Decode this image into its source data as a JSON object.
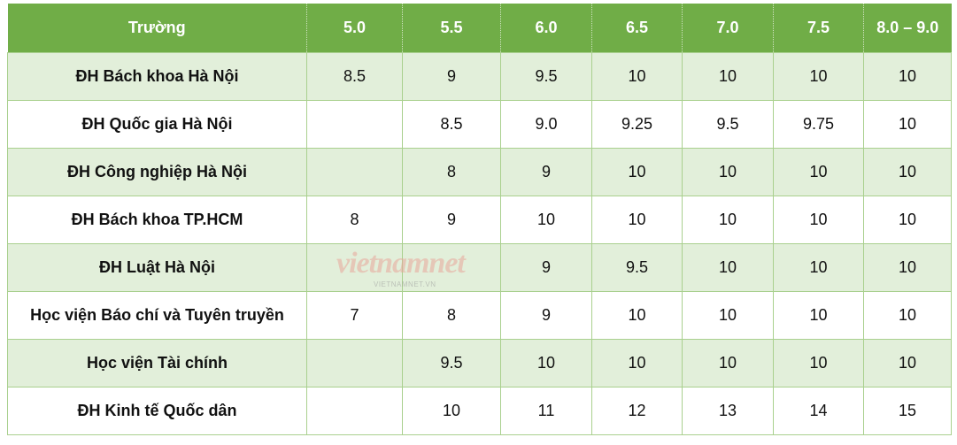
{
  "table": {
    "headers": [
      "Trường",
      "5.0",
      "5.5",
      "6.0",
      "6.5",
      "7.0",
      "7.5",
      "8.0 – 9.0"
    ],
    "rows": [
      [
        "ĐH Bách khoa Hà Nội",
        "8.5",
        "9",
        "9.5",
        "10",
        "10",
        "10",
        "10"
      ],
      [
        "ĐH Quốc gia Hà Nội",
        "",
        "8.5",
        "9.0",
        "9.25",
        "9.5",
        "9.75",
        "10"
      ],
      [
        "ĐH Công nghiệp Hà Nội",
        "",
        "8",
        "9",
        "10",
        "10",
        "10",
        "10"
      ],
      [
        "ĐH Bách khoa TP.HCM",
        "8",
        "9",
        "10",
        "10",
        "10",
        "10",
        "10"
      ],
      [
        "ĐH Luật Hà Nội",
        "",
        "",
        "9",
        "9.5",
        "10",
        "10",
        "10"
      ],
      [
        "Học viện Báo chí và Tuyên truyền",
        "7",
        "8",
        "9",
        "10",
        "10",
        "10",
        "10"
      ],
      [
        "Học viện Tài chính",
        "",
        "9.5",
        "10",
        "10",
        "10",
        "10",
        "10"
      ],
      [
        "ĐH Kinh tế Quốc dân",
        "",
        "10",
        "11",
        "12",
        "13",
        "14",
        "15"
      ]
    ]
  },
  "watermark": {
    "logo": "vietnamnet",
    "sub": "VIETNAMNET.VN"
  },
  "colors": {
    "header": "#70ad47",
    "alt_row": "#e2efda",
    "border": "#a9d08e"
  }
}
